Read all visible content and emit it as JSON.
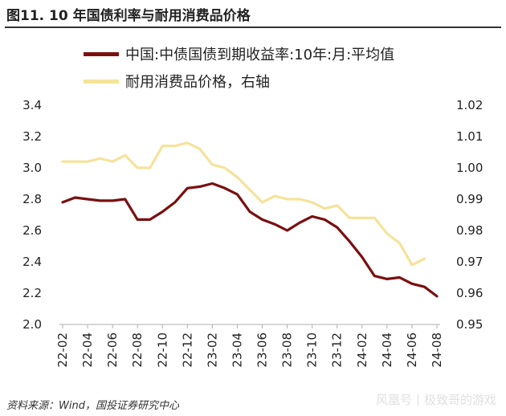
{
  "title": "图11. 10 年国债利率与耐用消费品价格",
  "source": "资料来源：Wind，国投证券研究中心",
  "watermark": "风凰号丨极致哥的游戏",
  "colors": {
    "series1": "#7a1010",
    "series2": "#f5e39a",
    "axis": "#b0b0b0"
  },
  "chart_data": {
    "type": "line",
    "x": [
      "22-02",
      "22-03",
      "22-04",
      "22-05",
      "22-06",
      "22-07",
      "22-08",
      "22-09",
      "22-10",
      "22-11",
      "22-12",
      "23-01",
      "23-02",
      "23-03",
      "23-04",
      "23-05",
      "23-06",
      "23-07",
      "23-08",
      "23-09",
      "23-10",
      "23-11",
      "23-12",
      "24-01",
      "24-02",
      "24-03",
      "24-04",
      "24-05",
      "24-06",
      "24-07",
      "24-08"
    ],
    "xticks": [
      "22-02",
      "22-04",
      "22-06",
      "22-08",
      "22-10",
      "22-12",
      "23-02",
      "23-04",
      "23-06",
      "23-08",
      "23-10",
      "23-12",
      "24-02",
      "24-04",
      "24-06",
      "24-08"
    ],
    "series": [
      {
        "name": "中国:中债国债到期收益率:10年:月:平均值",
        "axis": "left",
        "values": [
          2.78,
          2.81,
          2.8,
          2.79,
          2.79,
          2.8,
          2.67,
          2.67,
          2.72,
          2.78,
          2.87,
          2.88,
          2.9,
          2.87,
          2.83,
          2.72,
          2.67,
          2.64,
          2.6,
          2.65,
          2.69,
          2.67,
          2.62,
          2.53,
          2.43,
          2.31,
          2.29,
          2.3,
          2.26,
          2.24,
          2.18
        ]
      },
      {
        "name": "耐用消费品价格，右轴",
        "axis": "right",
        "values": [
          1.002,
          1.002,
          1.002,
          1.003,
          1.002,
          1.004,
          1.0,
          1.0,
          1.007,
          1.007,
          1.008,
          1.006,
          1.001,
          1.0,
          0.997,
          0.993,
          0.989,
          0.991,
          0.99,
          0.99,
          0.989,
          0.987,
          0.988,
          0.984,
          0.984,
          0.984,
          0.979,
          0.976,
          0.969,
          0.971,
          null
        ]
      }
    ],
    "ylim_left": [
      2.0,
      3.4
    ],
    "yticks_left": [
      "2.0",
      "2.2",
      "2.4",
      "2.6",
      "2.8",
      "3.0",
      "3.2",
      "3.4"
    ],
    "ylim_right": [
      0.95,
      1.02
    ],
    "yticks_right": [
      "0.95",
      "0.96",
      "0.97",
      "0.98",
      "0.99",
      "1.00",
      "1.01",
      "1.02"
    ],
    "grid": false,
    "legend": "top-left"
  }
}
